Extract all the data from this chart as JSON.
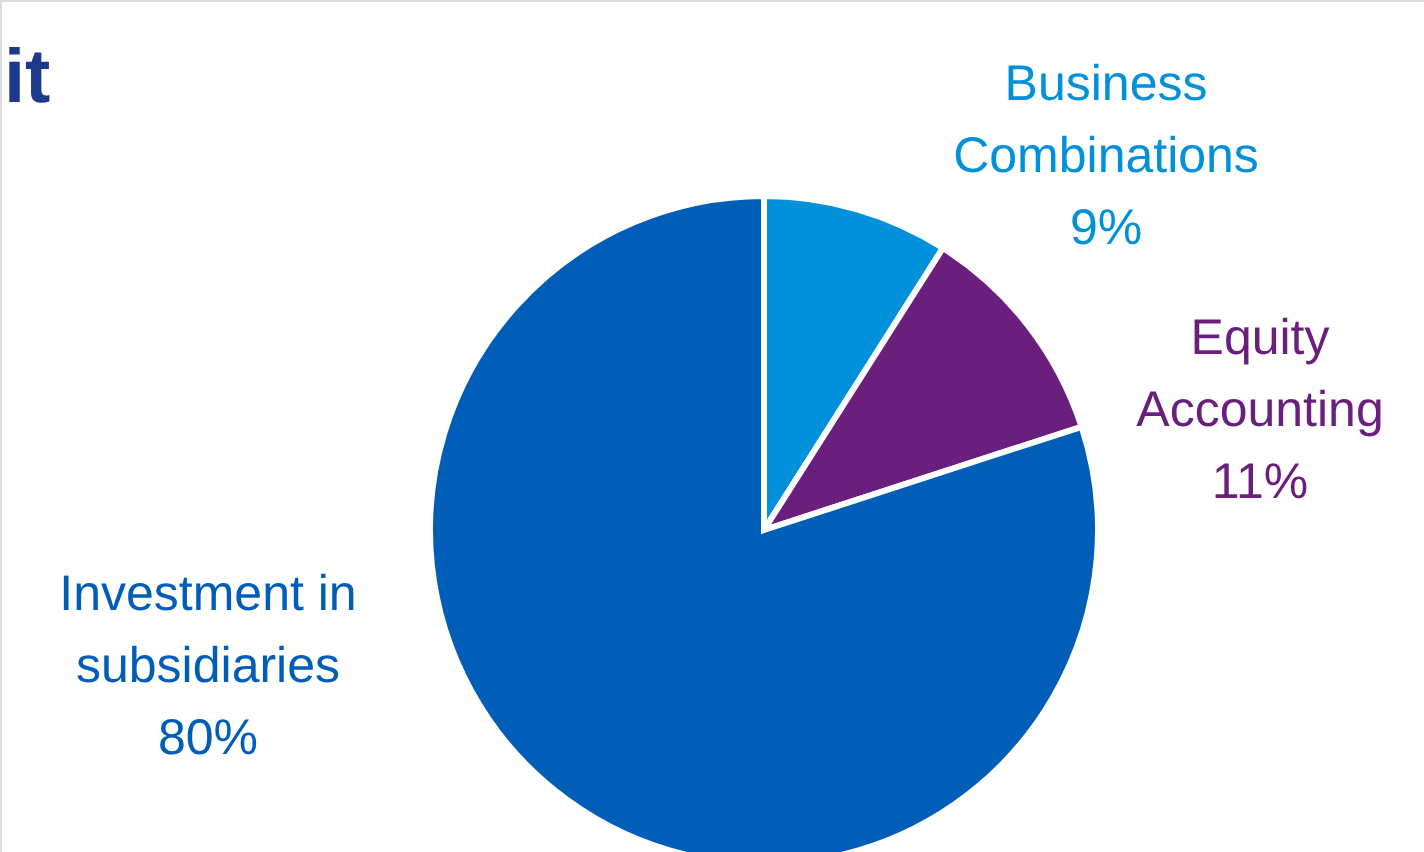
{
  "chart_data": {
    "type": "pie",
    "title": "it",
    "categories": [
      "Business Combinations",
      "Equity Accounting",
      "Investment in subsidiaries"
    ],
    "values": [
      9,
      11,
      80
    ],
    "colors": [
      "#0091da",
      "#6b1f7c",
      "#005eb8"
    ],
    "value_labels": [
      "9%",
      "11%",
      "80%"
    ]
  }
}
